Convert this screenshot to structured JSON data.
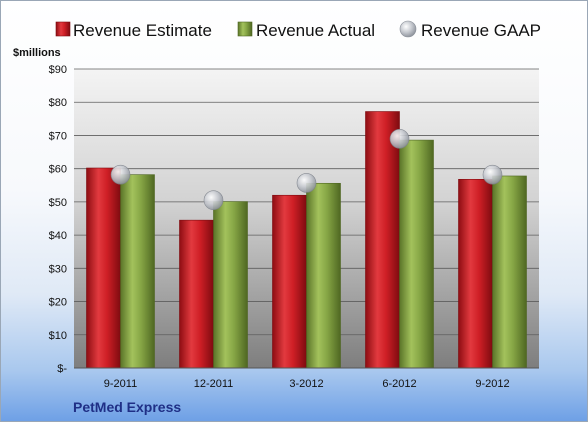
{
  "chart_data": {
    "type": "bar",
    "categories": [
      "9-2011",
      "12-2011",
      "3-2012",
      "6-2012",
      "9-2012"
    ],
    "series": [
      {
        "name": "Revenue Estimate",
        "type": "bar",
        "color": "#cc1c24",
        "values": [
          60.2,
          44.5,
          52.0,
          77.2,
          56.8
        ]
      },
      {
        "name": "Revenue Actual",
        "type": "bar",
        "color": "#7f9e3c",
        "values": [
          58.2,
          50.1,
          55.6,
          68.6,
          57.8
        ]
      },
      {
        "name": "Revenue GAAP",
        "type": "point",
        "color": "#b8bcc4",
        "values": [
          58.2,
          50.5,
          55.7,
          69.0,
          58.2
        ]
      }
    ],
    "ylabel": "$millions",
    "ylim": [
      0,
      90
    ],
    "yticks": [
      "$-",
      "$10",
      "$20",
      "$30",
      "$40",
      "$50",
      "$60",
      "$70",
      "$80",
      "$90"
    ],
    "grid": true,
    "legend_position": "top",
    "company": "PetMed Express"
  }
}
